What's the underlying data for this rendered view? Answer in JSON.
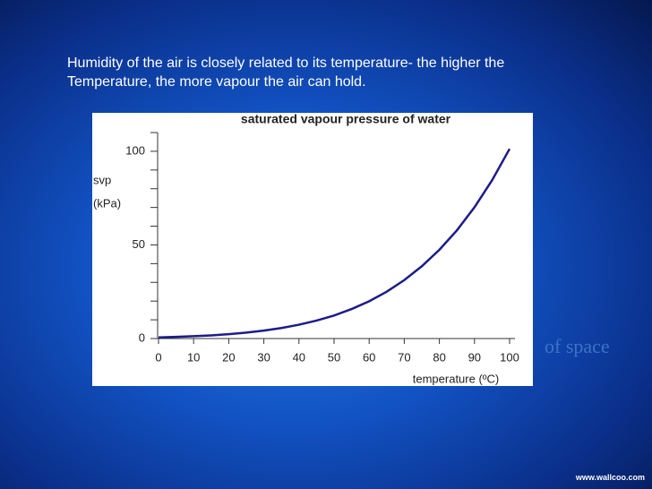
{
  "slide": {
    "text": [
      "Humidity of the air is closely related to its temperature- the higher the",
      "Temperature, the more vapour the air can hold."
    ],
    "watermark": "of space",
    "credit": "www.wallcoo.com"
  },
  "chart_data": {
    "type": "line",
    "title": "saturated vapour pressure of water",
    "ylabel": [
      "svp",
      "(kPa)"
    ],
    "xlabel": "temperature (ºC)",
    "x": [
      0,
      5,
      10,
      15,
      20,
      25,
      30,
      35,
      40,
      45,
      50,
      55,
      60,
      65,
      70,
      75,
      80,
      85,
      90,
      95,
      100
    ],
    "series": [
      {
        "color": "#1c1c8a",
        "values": [
          0.61,
          0.87,
          1.23,
          1.7,
          2.34,
          3.17,
          4.24,
          5.62,
          7.38,
          9.59,
          12.3,
          15.76,
          19.9,
          25.0,
          31.2,
          38.6,
          47.4,
          57.8,
          70.1,
          84.5,
          101.3
        ]
      }
    ],
    "xlim": [
      0,
      100
    ],
    "ylim": [
      0,
      110
    ],
    "xticks": [
      0,
      10,
      20,
      30,
      40,
      50,
      60,
      70,
      80,
      90,
      100
    ],
    "yticks": [
      0,
      50,
      100
    ],
    "yminorticks": [
      10,
      20,
      30,
      40,
      60,
      70,
      80,
      90,
      110
    ]
  }
}
